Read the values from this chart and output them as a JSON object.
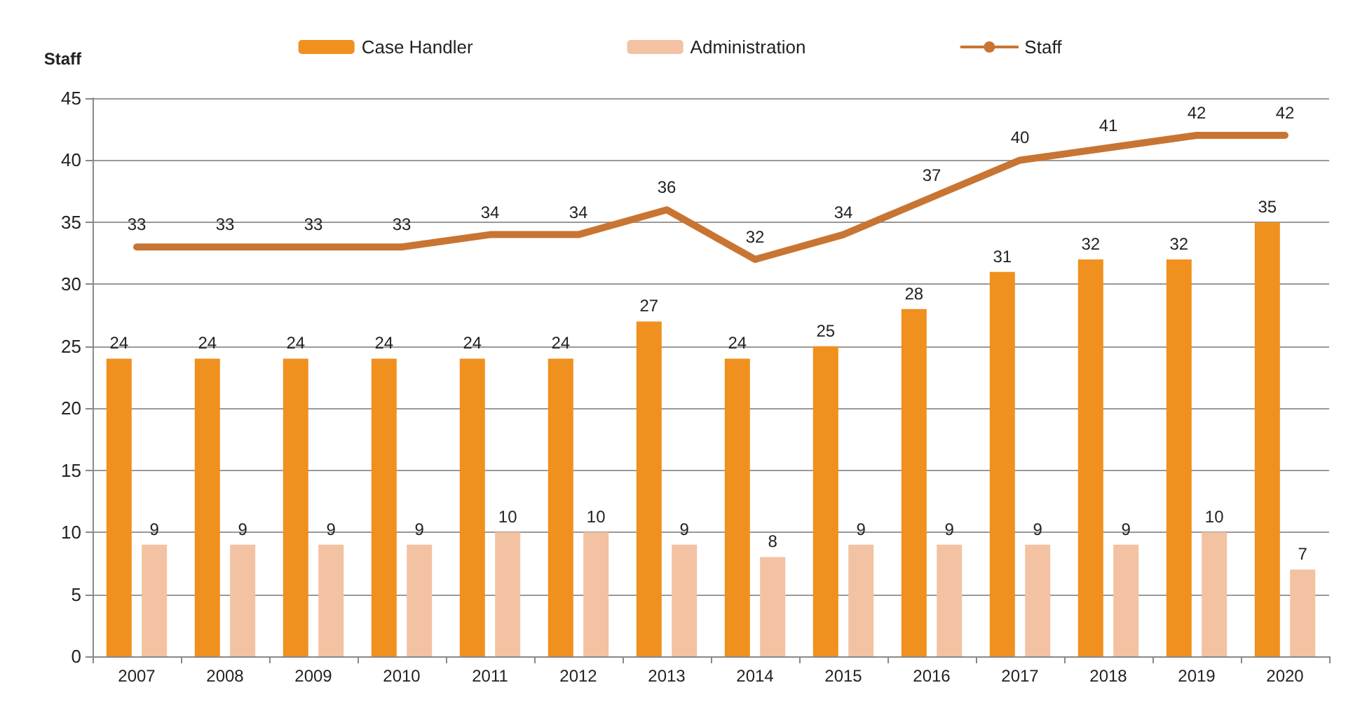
{
  "chart_data": {
    "type": "bar",
    "ylabel": "Staff",
    "categories": [
      "2007",
      "2008",
      "2009",
      "2010",
      "2011",
      "2012",
      "2013",
      "2014",
      "2015",
      "2016",
      "2017",
      "2018",
      "2019",
      "2020"
    ],
    "series": [
      {
        "name": "Case Handler",
        "color": "#f0901e",
        "values": [
          24,
          24,
          24,
          24,
          24,
          24,
          27,
          24,
          25,
          28,
          31,
          32,
          32,
          35
        ]
      },
      {
        "name": "Administration",
        "color": "#f3c2a2",
        "values": [
          9,
          9,
          9,
          9,
          10,
          10,
          9,
          8,
          9,
          9,
          9,
          9,
          10,
          7
        ]
      },
      {
        "name": "Staff",
        "type": "line",
        "color": "#c87533",
        "values": [
          33,
          33,
          33,
          33,
          34,
          34,
          36,
          32,
          34,
          37,
          40,
          41,
          42,
          42
        ]
      }
    ],
    "ylim": [
      0,
      45
    ],
    "yticks": [
      0,
      5,
      10,
      15,
      20,
      25,
      30,
      35,
      40,
      45
    ],
    "grid": "y",
    "legend": "top",
    "data_labels": true,
    "marker": "none",
    "line_style": "solid"
  }
}
